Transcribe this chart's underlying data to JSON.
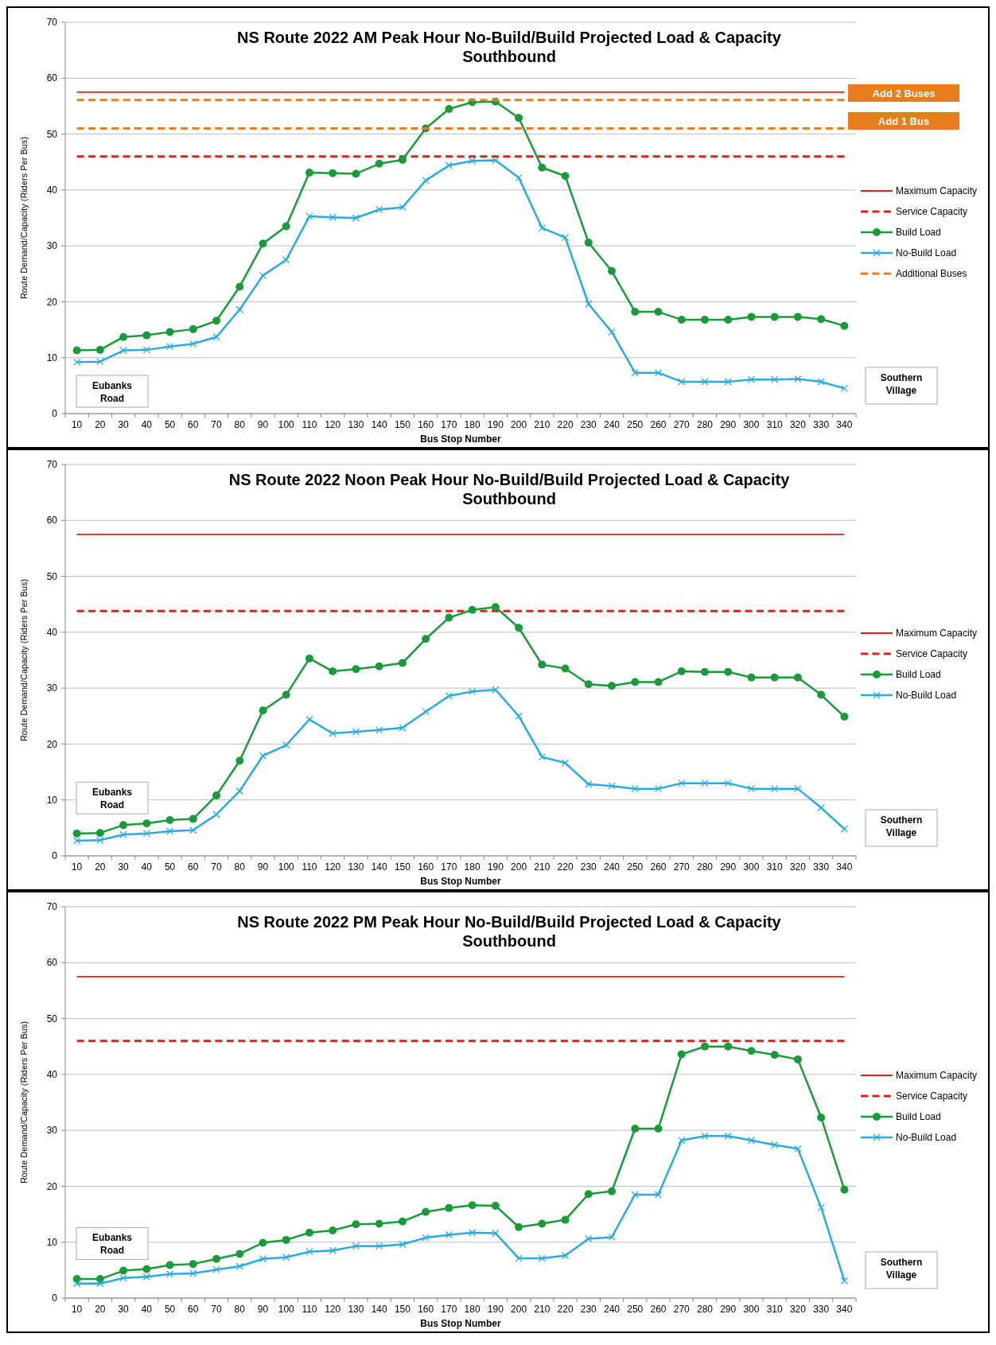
{
  "chart_data": [
    {
      "type": "line",
      "title": "NS Route 2022 AM Peak Hour No-Build/Build Projected Load & Capacity",
      "subtitle": "Southbound",
      "xlabel": "Bus Stop Number",
      "ylabel": "Route Demand/Capacity (Riders Per Bus)",
      "categories": [
        "10",
        "20",
        "30",
        "40",
        "50",
        "60",
        "70",
        "80",
        "90",
        "100",
        "110",
        "120",
        "130",
        "140",
        "150",
        "160",
        "170",
        "180",
        "190",
        "200",
        "210",
        "220",
        "230",
        "240",
        "250",
        "260",
        "270",
        "280",
        "290",
        "300",
        "310",
        "320",
        "330",
        "340"
      ],
      "ylim": [
        0,
        70
      ],
      "yticks": [
        0,
        10,
        20,
        30,
        40,
        50,
        60,
        70
      ],
      "grid": "y",
      "legend": "right",
      "series": [
        {
          "name": "Maximum Capacity",
          "color": "#e0201b",
          "line_style": "solid",
          "marker": "none",
          "values": [
            57.5,
            57.5,
            57.5,
            57.5,
            57.5,
            57.5,
            57.5,
            57.5,
            57.5,
            57.5,
            57.5,
            57.5,
            57.5,
            57.5,
            57.5,
            57.5,
            57.5,
            57.5,
            57.5,
            57.5,
            57.5,
            57.5,
            57.5,
            57.5,
            57.5,
            57.5,
            57.5,
            57.5,
            57.5,
            57.5,
            57.5,
            57.5,
            57.5,
            57.5
          ]
        },
        {
          "name": "Service Capacity",
          "color": "#e0201b",
          "line_style": "dashed",
          "marker": "none",
          "values": [
            46,
            46,
            46,
            46,
            46,
            46,
            46,
            46,
            46,
            46,
            46,
            46,
            46,
            46,
            46,
            46,
            46,
            46,
            46,
            46,
            46,
            46,
            46,
            46,
            46,
            46,
            46,
            46,
            46,
            46,
            46,
            46,
            46,
            46
          ]
        },
        {
          "name": "Build Load",
          "color": "#1a9a3a",
          "line_style": "solid",
          "marker": "circle",
          "values": [
            11.3,
            11.4,
            13.7,
            14.0,
            14.6,
            15.1,
            16.6,
            22.7,
            30.4,
            33.5,
            43.1,
            43.0,
            42.9,
            44.7,
            45.4,
            51.0,
            54.5,
            55.7,
            55.8,
            52.9,
            44.0,
            42.5,
            30.6,
            25.5,
            18.2,
            18.2,
            16.8,
            16.8,
            16.8,
            17.3,
            17.3,
            17.3,
            16.9,
            15.7
          ]
        },
        {
          "name": "No-Build Load",
          "color": "#29abe2",
          "line_style": "solid",
          "marker": "cross",
          "values": [
            9.2,
            9.3,
            11.3,
            11.4,
            12.0,
            12.5,
            13.7,
            18.6,
            24.7,
            27.5,
            35.3,
            35.1,
            35.0,
            36.5,
            36.9,
            41.7,
            44.4,
            45.2,
            45.3,
            42.2,
            33.2,
            31.5,
            19.6,
            14.6,
            7.3,
            7.3,
            5.7,
            5.7,
            5.7,
            6.1,
            6.1,
            6.2,
            5.7,
            4.5
          ]
        },
        {
          "name": "Additional Buses",
          "color": "#e87d1e",
          "line_style": "dashed",
          "marker": "none",
          "values": [
            56.1,
            56.1,
            56.1,
            56.1,
            56.1,
            56.1,
            56.1,
            56.1,
            56.1,
            56.1,
            56.1,
            56.1,
            56.1,
            56.1,
            56.1,
            56.1,
            56.1,
            56.1,
            56.1,
            56.1,
            56.1,
            56.1,
            56.1,
            56.1,
            56.1,
            56.1,
            56.1,
            56.1,
            56.1,
            56.1,
            56.1,
            56.1,
            56.1,
            56.1
          ]
        },
        {
          "color": "#e87d1e",
          "line_style": "dashed",
          "marker": "none",
          "values": [
            51,
            51,
            51,
            51,
            51,
            51,
            51,
            51,
            51,
            51,
            51,
            51,
            51,
            51,
            51,
            51,
            51,
            51,
            51,
            51,
            51,
            51,
            51,
            51,
            51,
            51,
            51,
            51,
            51,
            51,
            51,
            51,
            51,
            51
          ]
        }
      ],
      "annotations": [
        "Add 2 Buses",
        "Add 1 Bus",
        "Eubanks Road",
        "Southern Village"
      ]
    },
    {
      "type": "line",
      "title": "NS Route 2022 Noon Peak Hour No-Build/Build Projected Load & Capacity",
      "subtitle": "Southbound",
      "xlabel": "Bus Stop Number",
      "ylabel": "Route Demand/Capacity (Riders Per Bus)",
      "categories": [
        "10",
        "20",
        "30",
        "40",
        "50",
        "60",
        "70",
        "80",
        "90",
        "100",
        "110",
        "120",
        "130",
        "140",
        "150",
        "160",
        "170",
        "180",
        "190",
        "200",
        "210",
        "220",
        "230",
        "240",
        "250",
        "260",
        "270",
        "280",
        "290",
        "300",
        "310",
        "320",
        "330",
        "340"
      ],
      "ylim": [
        0,
        70
      ],
      "yticks": [
        0,
        10,
        20,
        30,
        40,
        50,
        60,
        70
      ],
      "grid": "y",
      "legend": "right",
      "series": [
        {
          "name": "Maximum Capacity",
          "color": "#e0201b",
          "line_style": "solid",
          "marker": "none",
          "values": [
            57.5,
            57.5,
            57.5,
            57.5,
            57.5,
            57.5,
            57.5,
            57.5,
            57.5,
            57.5,
            57.5,
            57.5,
            57.5,
            57.5,
            57.5,
            57.5,
            57.5,
            57.5,
            57.5,
            57.5,
            57.5,
            57.5,
            57.5,
            57.5,
            57.5,
            57.5,
            57.5,
            57.5,
            57.5,
            57.5,
            57.5,
            57.5,
            57.5,
            57.5
          ]
        },
        {
          "name": "Service Capacity",
          "color": "#e0201b",
          "line_style": "dashed",
          "marker": "none",
          "values": [
            43.8,
            43.8,
            43.8,
            43.8,
            43.8,
            43.8,
            43.8,
            43.8,
            43.8,
            43.8,
            43.8,
            43.8,
            43.8,
            43.8,
            43.8,
            43.8,
            43.8,
            43.8,
            43.8,
            43.8,
            43.8,
            43.8,
            43.8,
            43.8,
            43.8,
            43.8,
            43.8,
            43.8,
            43.8,
            43.8,
            43.8,
            43.8,
            43.8,
            43.8
          ]
        },
        {
          "name": "Build Load",
          "color": "#1a9a3a",
          "line_style": "solid",
          "marker": "circle",
          "values": [
            4.0,
            4.1,
            5.5,
            5.8,
            6.4,
            6.6,
            10.8,
            17.0,
            26.0,
            28.8,
            35.3,
            33.0,
            33.4,
            33.9,
            34.5,
            38.8,
            42.6,
            44.0,
            44.5,
            40.8,
            34.2,
            33.5,
            30.7,
            30.4,
            31.1,
            31.1,
            33.0,
            32.9,
            32.9,
            31.9,
            31.9,
            31.9,
            28.8,
            24.9
          ]
        },
        {
          "name": "No-Build Load",
          "color": "#29abe2",
          "line_style": "solid",
          "marker": "cross",
          "values": [
            2.7,
            2.8,
            3.8,
            4.0,
            4.4,
            4.6,
            7.4,
            11.6,
            17.9,
            19.8,
            24.4,
            21.9,
            22.2,
            22.5,
            22.9,
            25.8,
            28.6,
            29.4,
            29.7,
            25.0,
            17.7,
            16.6,
            12.8,
            12.5,
            12.0,
            12.0,
            13.0,
            13.0,
            13.0,
            12.0,
            12.0,
            12.0,
            8.6,
            4.8
          ]
        }
      ],
      "annotations": [
        "Eubanks Road",
        "Southern Village"
      ]
    },
    {
      "type": "line",
      "title": "NS Route 2022 PM Peak Hour No-Build/Build Projected Load & Capacity",
      "subtitle": "Southbound",
      "xlabel": "Bus Stop Number",
      "ylabel": "Route Demand/Capacity (Riders Per Bus)",
      "categories": [
        "10",
        "20",
        "30",
        "40",
        "50",
        "60",
        "70",
        "80",
        "90",
        "100",
        "110",
        "120",
        "130",
        "140",
        "150",
        "160",
        "170",
        "180",
        "190",
        "200",
        "210",
        "220",
        "230",
        "240",
        "250",
        "260",
        "270",
        "280",
        "290",
        "300",
        "310",
        "320",
        "330",
        "340"
      ],
      "ylim": [
        0,
        70
      ],
      "yticks": [
        0,
        10,
        20,
        30,
        40,
        50,
        60,
        70
      ],
      "grid": "y",
      "legend": "right",
      "series": [
        {
          "name": "Maximum Capacity",
          "color": "#e0201b",
          "line_style": "solid",
          "marker": "none",
          "values": [
            57.5,
            57.5,
            57.5,
            57.5,
            57.5,
            57.5,
            57.5,
            57.5,
            57.5,
            57.5,
            57.5,
            57.5,
            57.5,
            57.5,
            57.5,
            57.5,
            57.5,
            57.5,
            57.5,
            57.5,
            57.5,
            57.5,
            57.5,
            57.5,
            57.5,
            57.5,
            57.5,
            57.5,
            57.5,
            57.5,
            57.5,
            57.5,
            57.5,
            57.5
          ]
        },
        {
          "name": "Service Capacity",
          "color": "#e0201b",
          "line_style": "dashed",
          "marker": "none",
          "values": [
            46,
            46,
            46,
            46,
            46,
            46,
            46,
            46,
            46,
            46,
            46,
            46,
            46,
            46,
            46,
            46,
            46,
            46,
            46,
            46,
            46,
            46,
            46,
            46,
            46,
            46,
            46,
            46,
            46,
            46,
            46,
            46,
            46,
            46
          ]
        },
        {
          "name": "Build Load",
          "color": "#1a9a3a",
          "line_style": "solid",
          "marker": "circle",
          "values": [
            3.4,
            3.4,
            4.9,
            5.2,
            5.9,
            6.1,
            7.0,
            7.9,
            9.9,
            10.4,
            11.7,
            12.1,
            13.2,
            13.3,
            13.7,
            15.4,
            16.1,
            16.6,
            16.5,
            12.7,
            13.3,
            14.0,
            18.6,
            19.1,
            30.3,
            30.3,
            43.6,
            45.0,
            45.0,
            44.2,
            43.5,
            42.7,
            32.3,
            19.4
          ]
        },
        {
          "name": "No-Build Load",
          "color": "#29abe2",
          "line_style": "solid",
          "marker": "cross",
          "values": [
            2.6,
            2.6,
            3.6,
            3.8,
            4.3,
            4.4,
            5.1,
            5.7,
            7.0,
            7.3,
            8.3,
            8.5,
            9.3,
            9.3,
            9.6,
            10.8,
            11.3,
            11.7,
            11.6,
            7.1,
            7.1,
            7.6,
            10.6,
            10.9,
            18.5,
            18.5,
            28.2,
            29.0,
            29.0,
            28.2,
            27.4,
            26.7,
            16.2,
            3.1
          ]
        }
      ],
      "annotations": [
        "Eubanks Road",
        "Southern Village"
      ]
    }
  ]
}
